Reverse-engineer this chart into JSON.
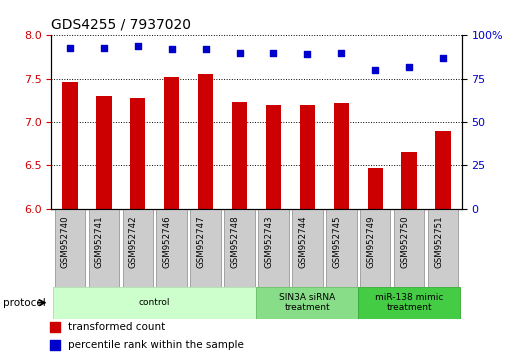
{
  "title": "GDS4255 / 7937020",
  "categories": [
    "GSM952740",
    "GSM952741",
    "GSM952742",
    "GSM952746",
    "GSM952747",
    "GSM952748",
    "GSM952743",
    "GSM952744",
    "GSM952745",
    "GSM952749",
    "GSM952750",
    "GSM952751"
  ],
  "bar_values": [
    7.46,
    7.3,
    7.28,
    7.52,
    7.55,
    7.23,
    7.2,
    7.2,
    7.22,
    6.47,
    6.65,
    6.9
  ],
  "dot_values": [
    93,
    93,
    94,
    92,
    92,
    90,
    90,
    89,
    90,
    80,
    82,
    87
  ],
  "bar_color": "#cc0000",
  "dot_color": "#0000cc",
  "ylim_left": [
    6,
    8
  ],
  "ylim_right": [
    0,
    100
  ],
  "yticks_left": [
    6.0,
    6.5,
    7.0,
    7.5,
    8.0
  ],
  "yticks_right": [
    0,
    25,
    50,
    75,
    100
  ],
  "protocol_groups": [
    {
      "label": "control",
      "start": 0,
      "end": 6,
      "color": "#ccffcc",
      "edgecolor": "#aaddaa"
    },
    {
      "label": "SIN3A siRNA\ntreatment",
      "start": 6,
      "end": 9,
      "color": "#88dd88",
      "edgecolor": "#66bb66"
    },
    {
      "label": "miR-138 mimic\ntreatment",
      "start": 9,
      "end": 12,
      "color": "#44cc44",
      "edgecolor": "#33aa33"
    }
  ],
  "legend_items": [
    {
      "label": "transformed count",
      "color": "#cc0000"
    },
    {
      "label": "percentile rank within the sample",
      "color": "#0000cc"
    }
  ],
  "protocol_label": "protocol",
  "ylabel_left_color": "#cc0000",
  "ylabel_right_color": "#0000cc",
  "bar_width": 0.45,
  "label_box_color": "#cccccc",
  "label_box_edgecolor": "#888888"
}
